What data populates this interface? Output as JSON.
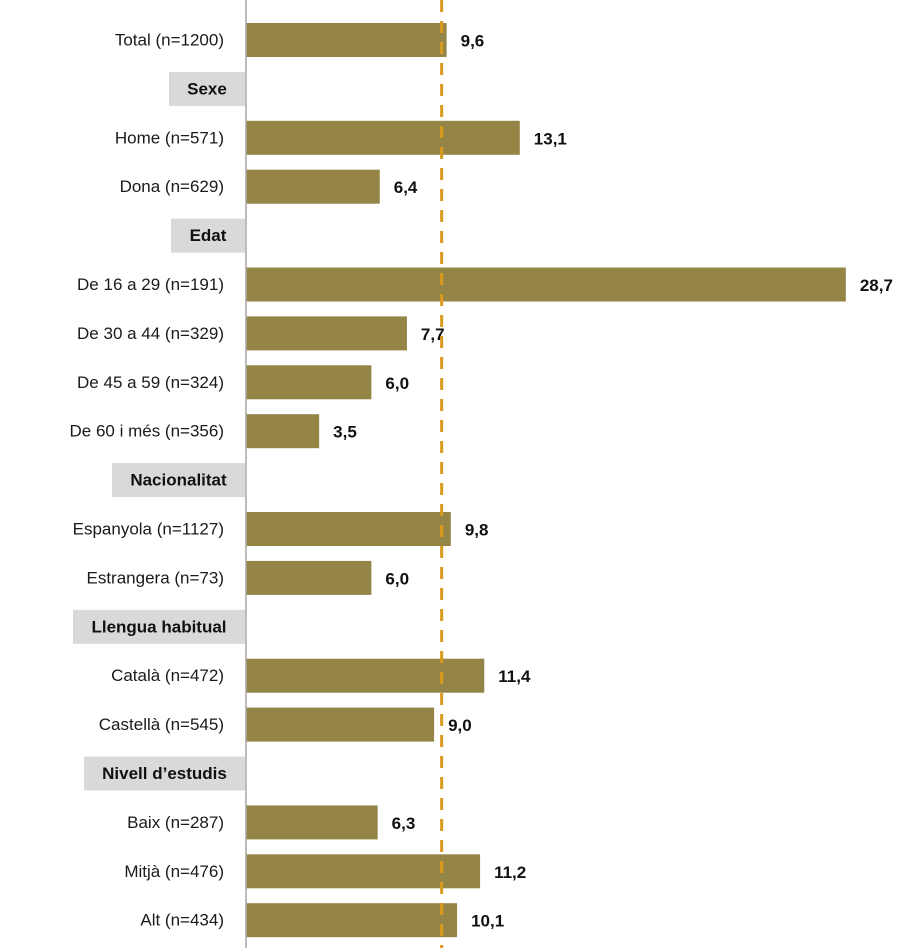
{
  "chart_data": {
    "type": "bar",
    "orientation": "horizontal",
    "reference_value": 9.6,
    "reference_line": "dashed",
    "colors": {
      "bar": "#948446",
      "reference": "#d99a1e",
      "header_bg": "#d9d9d9",
      "axis": "#a6a6a6"
    },
    "rows": [
      {
        "kind": "bar",
        "label": "Total (n=1200)",
        "value": 9.6,
        "value_label": "9,6"
      },
      {
        "kind": "header",
        "label": "Sexe"
      },
      {
        "kind": "bar",
        "label": "Home (n=571)",
        "value": 13.1,
        "value_label": "13,1"
      },
      {
        "kind": "bar",
        "label": "Dona (n=629)",
        "value": 6.4,
        "value_label": "6,4"
      },
      {
        "kind": "header",
        "label": "Edat"
      },
      {
        "kind": "bar",
        "label": "De 16 a 29 (n=191)",
        "value": 28.7,
        "value_label": "28,7"
      },
      {
        "kind": "bar",
        "label": "De 30 a 44 (n=329)",
        "value": 7.7,
        "value_label": "7,7"
      },
      {
        "kind": "bar",
        "label": "De 45 a 59 (n=324)",
        "value": 6.0,
        "value_label": "6,0"
      },
      {
        "kind": "bar",
        "label": "De 60 i més (n=356)",
        "value": 3.5,
        "value_label": "3,5"
      },
      {
        "kind": "header",
        "label": "Nacionalitat"
      },
      {
        "kind": "bar",
        "label": "Espanyola (n=1127)",
        "value": 9.8,
        "value_label": "9,8"
      },
      {
        "kind": "bar",
        "label": "Estrangera (n=73)",
        "value": 6.0,
        "value_label": "6,0"
      },
      {
        "kind": "header",
        "label": "Llengua habitual"
      },
      {
        "kind": "bar",
        "label": "Català (n=472)",
        "value": 11.4,
        "value_label": "11,4"
      },
      {
        "kind": "bar",
        "label": "Castellà (n=545)",
        "value": 9.0,
        "value_label": "9,0"
      },
      {
        "kind": "header",
        "label": "Nivell d’estudis"
      },
      {
        "kind": "bar",
        "label": "Baix (n=287)",
        "value": 6.3,
        "value_label": "6,3"
      },
      {
        "kind": "bar",
        "label": "Mitjà (n=476)",
        "value": 11.2,
        "value_label": "11,2"
      },
      {
        "kind": "bar",
        "label": "Alt (n=434)",
        "value": 10.1,
        "value_label": "10,1"
      }
    ]
  }
}
